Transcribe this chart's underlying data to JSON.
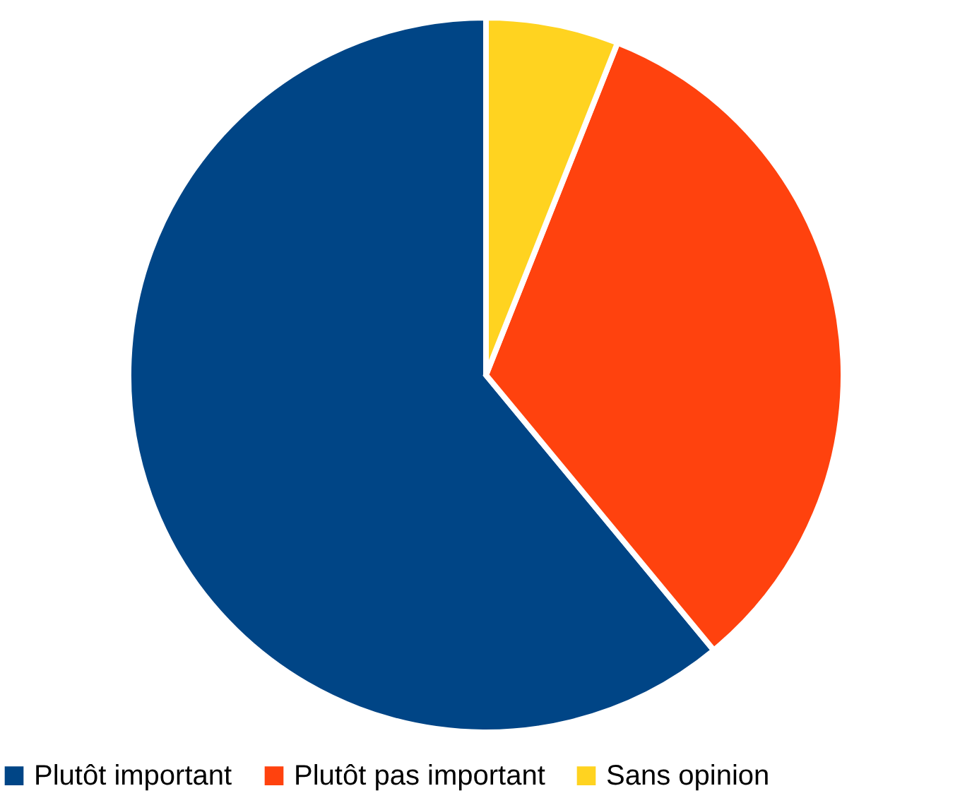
{
  "chart_data": {
    "type": "pie",
    "categories": [
      "Plutôt important",
      "Plutôt pas important",
      "Sans opinion"
    ],
    "values": [
      61,
      33,
      6
    ],
    "colors": [
      "#004586",
      "#ff420e",
      "#ffd320"
    ],
    "legend": "bottom"
  }
}
